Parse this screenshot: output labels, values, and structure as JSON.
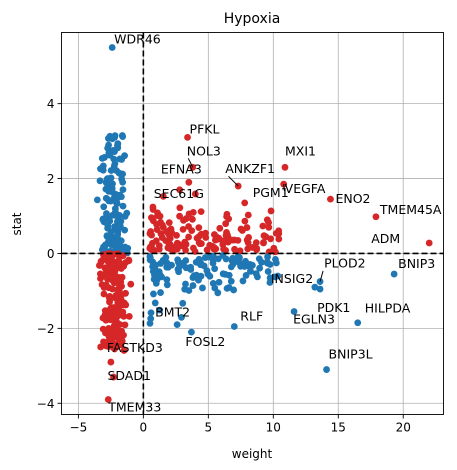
{
  "chart_data": {
    "type": "scatter",
    "title": "Hypoxia",
    "xlabel": "weight",
    "ylabel": "stat",
    "xlim": [
      -6.3,
      23.1
    ],
    "ylim": [
      -4.3,
      5.9
    ],
    "xticks": [
      -5,
      0,
      5,
      10,
      15,
      20
    ],
    "yticks": [
      -4,
      -2,
      0,
      2,
      4
    ],
    "grid": true,
    "reference_lines": {
      "x": 0,
      "y": 0
    },
    "colors": {
      "positive": "#d62728",
      "negative": "#1f77b4"
    },
    "labeled_points": [
      {
        "label": "WDR46",
        "x": -2.4,
        "y": 5.5,
        "color": "#1f77b4"
      },
      {
        "label": "PFKL",
        "x": 3.4,
        "y": 3.1,
        "color": "#d62728"
      },
      {
        "label": "NOL3",
        "x": 3.8,
        "y": 2.3,
        "color": "#d62728"
      },
      {
        "label": "MXI1",
        "x": 10.9,
        "y": 2.3,
        "color": "#d62728"
      },
      {
        "label": "EFNA3",
        "x": 3.5,
        "y": 1.9,
        "color": "#d62728"
      },
      {
        "label": "ANKZF1",
        "x": 7.3,
        "y": 1.8,
        "color": "#d62728"
      },
      {
        "label": "VEGFA",
        "x": 10.8,
        "y": 1.85,
        "color": "#d62728"
      },
      {
        "label": "SEC61G",
        "x": 2.8,
        "y": 1.7,
        "color": "#d62728"
      },
      {
        "label": "PGM1",
        "x": 7.8,
        "y": 1.35,
        "color": "#d62728"
      },
      {
        "label": "ENO2",
        "x": 14.4,
        "y": 1.45,
        "color": "#d62728"
      },
      {
        "label": "TMEM45A",
        "x": 17.9,
        "y": 0.98,
        "color": "#d62728"
      },
      {
        "label": "ADM",
        "x": 22.0,
        "y": 0.28,
        "color": "#d62728"
      },
      {
        "label": "PLOD2",
        "x": 13.6,
        "y": -0.75,
        "color": "#1f77b4"
      },
      {
        "label": "INSIG2",
        "x": 13.2,
        "y": -0.9,
        "color": "#1f77b4"
      },
      {
        "label": "BNIP3",
        "x": 19.3,
        "y": -0.55,
        "color": "#1f77b4"
      },
      {
        "label": "PDK1",
        "x": 13.6,
        "y": -0.95,
        "color": "#1f77b4"
      },
      {
        "label": "EGLN3",
        "x": 11.6,
        "y": -1.55,
        "color": "#1f77b4"
      },
      {
        "label": "HILPDA",
        "x": 16.5,
        "y": -1.85,
        "color": "#1f77b4"
      },
      {
        "label": "BMT2",
        "x": 2.6,
        "y": -1.9,
        "color": "#1f77b4"
      },
      {
        "label": "RLF",
        "x": 7.0,
        "y": -1.95,
        "color": "#1f77b4"
      },
      {
        "label": "FOSL2",
        "x": 3.7,
        "y": -2.1,
        "color": "#1f77b4"
      },
      {
        "label": "FASTKD3",
        "x": -2.5,
        "y": -2.9,
        "color": "#d62728"
      },
      {
        "label": "BNIP3L",
        "x": 14.1,
        "y": -3.1,
        "color": "#1f77b4"
      },
      {
        "label": "SDAD1",
        "x": -2.3,
        "y": -3.3,
        "color": "#d62728"
      },
      {
        "label": "TMEM33",
        "x": -2.7,
        "y": -3.9,
        "color": "#d62728"
      }
    ],
    "clusters": [
      {
        "name": "",
        "color": "#1f77b4",
        "x_range": [
          -5.4,
          -1.2
        ],
        "y_range": [
          0.0,
          3.2
        ],
        "count": 140
      },
      {
        "name": "",
        "color": "#d62728",
        "x_range": [
          -5.4,
          -0.8
        ],
        "y_range": [
          -2.6,
          0.0
        ],
        "count": 170
      },
      {
        "name": "",
        "color": "#d62728",
        "x_range": [
          0.5,
          10.5
        ],
        "y_range": [
          0.0,
          2.2
        ],
        "count": 140
      },
      {
        "name": "",
        "color": "#1f77b4",
        "x_range": [
          0.5,
          10.5
        ],
        "y_range": [
          -2.2,
          0.0
        ],
        "count": 120
      }
    ]
  }
}
